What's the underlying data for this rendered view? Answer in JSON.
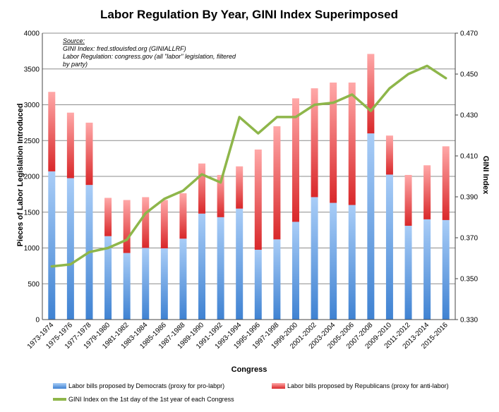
{
  "chart_data": {
    "type": "bar",
    "title": "Labor Regulation By Year, GINI Index Superimposed",
    "xlabel": "Congress",
    "ylabel": "Pieces of Labor Legislation Introduced",
    "y2label": "GINI Index",
    "ylim": [
      0,
      4000
    ],
    "y2lim": [
      0.33,
      0.47
    ],
    "yticks": [
      "0",
      "500",
      "1000",
      "1500",
      "2000",
      "2500",
      "3000",
      "3500",
      "4000"
    ],
    "y2ticks": [
      "0.330",
      "0.350",
      "0.370",
      "0.390",
      "0.410",
      "0.430",
      "0.450",
      "0.470"
    ],
    "grid": true,
    "stacked": true,
    "categories": [
      "1973-1974",
      "1975-1976",
      "1977-1978",
      "1979-1980",
      "1981-1982",
      "1983-1984",
      "1985-1986",
      "1987-1988",
      "1989-1990",
      "1991-1992",
      "1993-1994",
      "1995-1996",
      "1997-1998",
      "1999-2000",
      "2001-2002",
      "2003-2004",
      "2005-2006",
      "2007-2008",
      "2009-2010",
      "2011-2012",
      "2013-2014",
      "2015-2016"
    ],
    "series": [
      {
        "name": "Labor bills  proposed  by Democrats  (proxy for pro-labpr)",
        "axis": "left",
        "values": [
          2070,
          1975,
          1880,
          1165,
          930,
          1000,
          995,
          1130,
          1480,
          1430,
          1550,
          975,
          1120,
          1365,
          1710,
          1630,
          1600,
          2600,
          2025,
          1310,
          1400,
          1390
        ]
      },
      {
        "name": "Labor bills  proposed  by Republicans  (proxy for anti-labor)",
        "axis": "left",
        "values": [
          1110,
          915,
          870,
          535,
          740,
          710,
          675,
          635,
          700,
          590,
          590,
          1400,
          1580,
          1725,
          1520,
          1680,
          1710,
          1110,
          545,
          710,
          755,
          1030
        ]
      },
      {
        "name": "GINI Index on the 1st day of the 1st year of each Congress",
        "axis": "right",
        "type": "line",
        "values": [
          0.356,
          0.357,
          0.363,
          0.365,
          0.369,
          0.382,
          0.389,
          0.393,
          0.401,
          0.397,
          0.429,
          0.421,
          0.429,
          0.429,
          0.435,
          0.436,
          0.44,
          0.432,
          0.443,
          0.45,
          0.454,
          0.448
        ]
      }
    ],
    "colors": {
      "dem_top": "#a9cdf7",
      "dem_bottom": "#3f82d2",
      "rep_top": "#ffa8a8",
      "rep_bottom": "#d9282a",
      "gini_line": "#8eb64a"
    },
    "annotation": [
      "Source:",
      "GINI Index: fred.stlouisfed.org (GINIALLRF)",
      "Labor Regulation: congress.gov (all \"labor\" legislation, filtered",
      "by party)"
    ]
  }
}
